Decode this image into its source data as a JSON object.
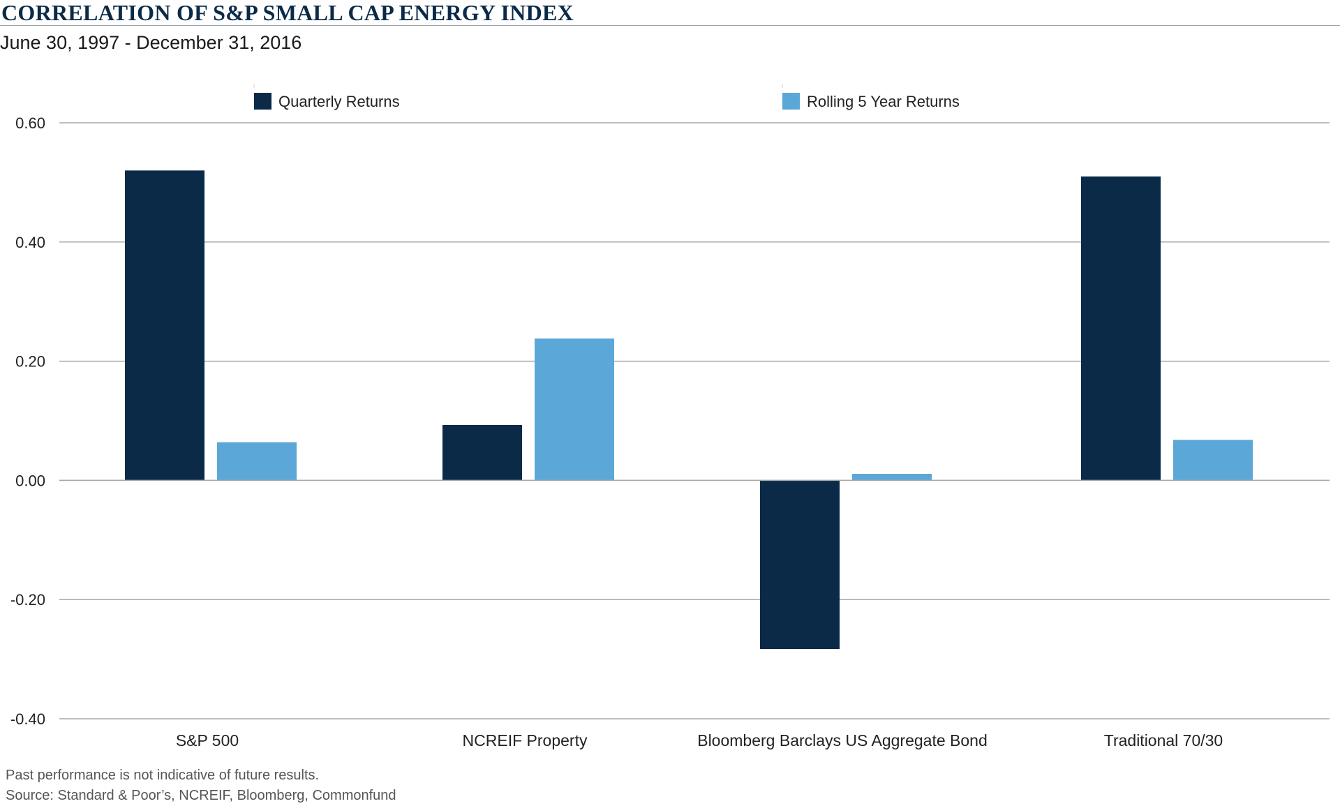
{
  "header": {
    "title": "CORRELATION OF S&P SMALL CAP ENERGY INDEX",
    "subtitle": "June 30, 1997 - December 31, 2016"
  },
  "footer": {
    "note": "Past performance is not indicative of future results.",
    "source": "Source: Standard & Poor’s, NCREIF, Bloomberg, Commonfund"
  },
  "colors": {
    "quarterly": "#0a2a47",
    "rolling": "#5ba7d7",
    "gridline": "#a8a8a8",
    "text": "#222222"
  },
  "chart_data": {
    "type": "bar",
    "title": "CORRELATION OF S&P SMALL CAP ENERGY INDEX",
    "subtitle": "June 30, 1997 - December 31, 2016",
    "categories": [
      "S&P 500",
      "NCREIF Property",
      "Bloomberg Barclays US Aggregate Bond",
      "Traditional 70/30"
    ],
    "series": [
      {
        "name": "Quarterly Returns",
        "values": [
          0.52,
          0.093,
          -0.283,
          0.51
        ]
      },
      {
        "name": "Rolling 5 Year Returns",
        "values": [
          0.064,
          0.238,
          0.011,
          0.068
        ]
      }
    ],
    "ylim": [
      -0.4,
      0.6
    ],
    "yticks": [
      0.6,
      0.4,
      0.2,
      0.0,
      -0.2,
      -0.4
    ],
    "ytick_labels": [
      "0.60",
      "0.40",
      "0.20",
      "0.00",
      "-0.20",
      "-0.40"
    ],
    "xlabel": "",
    "ylabel": "",
    "grid": true,
    "legend": "top"
  }
}
